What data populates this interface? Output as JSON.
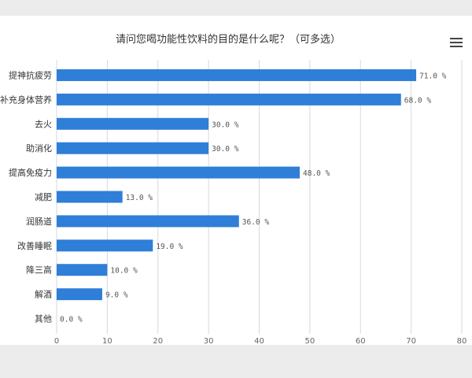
{
  "chart_data": {
    "type": "bar",
    "orientation": "horizontal",
    "title": "请问您喝功能性饮料的目的是什么呢？（可多选）",
    "categories": [
      "提神抗疲劳",
      "补充身体营养",
      "去火",
      "助消化",
      "提高免疫力",
      "减肥",
      "润肠道",
      "改善睡眠",
      "降三高",
      "解酒",
      "其他"
    ],
    "values": [
      71.0,
      68.0,
      30.0,
      30.0,
      48.0,
      13.0,
      36.0,
      19.0,
      10.0,
      9.0,
      0.0
    ],
    "data_labels": [
      "71.0 %",
      "68.0 %",
      "30.0 %",
      "30.0 %",
      "48.0 %",
      "13.0 %",
      "36.0 %",
      "19.0 %",
      "10.0 %",
      "9.0 %",
      "0.0 %"
    ],
    "xlim": [
      0,
      80
    ],
    "x_ticks": [
      "0",
      "10",
      "20",
      "30",
      "40",
      "50",
      "60",
      "70",
      "80"
    ],
    "grid": true,
    "bar_color": "#2f7ed8",
    "grid_color": "#d8d8d8"
  },
  "toolbar": {
    "menu_icon": "hamburger-menu-icon"
  }
}
